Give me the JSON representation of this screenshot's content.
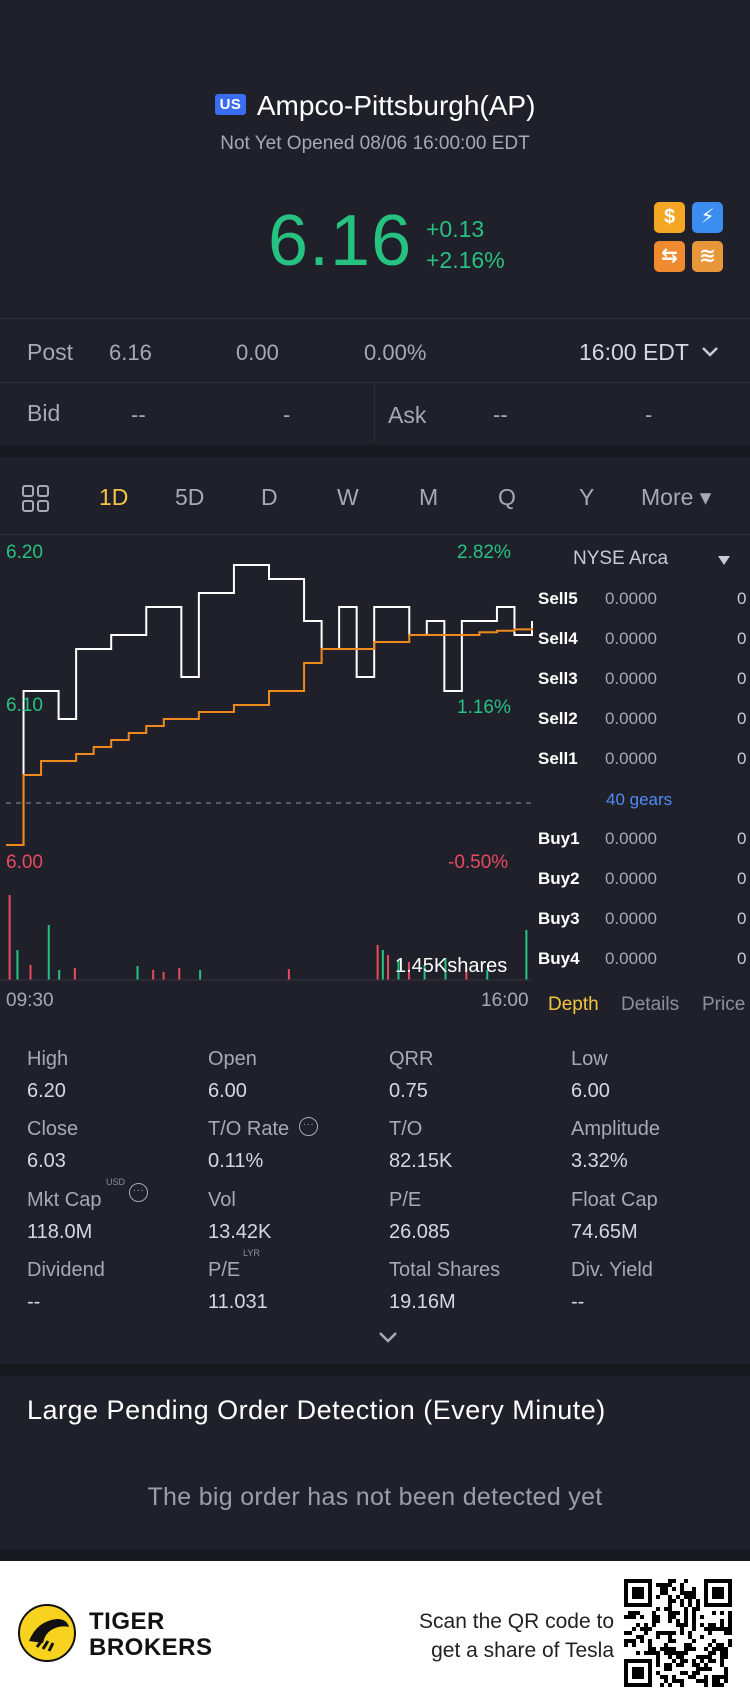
{
  "header": {
    "market": "US",
    "title": "Ampco-Pittsburgh(AP)",
    "status": "Not Yet Opened 08/06 16:00:00 EDT",
    "price": "6.16",
    "change": "+0.13",
    "change_pct": "+2.16%",
    "badges": [
      {
        "name": "dollar-icon",
        "glyph": "$",
        "color": "#f5a623"
      },
      {
        "name": "flash-icon",
        "glyph": "⚡",
        "color": "#3b8ef0"
      },
      {
        "name": "swap-icon",
        "glyph": "⇆",
        "color": "#f08a2e"
      },
      {
        "name": "stack-icon",
        "glyph": "≋",
        "color": "#e8963a"
      }
    ]
  },
  "post": {
    "label": "Post",
    "price": "6.16",
    "change": "0.00",
    "pct": "0.00%",
    "time": "16:00 EDT"
  },
  "quote": {
    "bid_label": "Bid",
    "bid_price": "--",
    "bid_size": "-",
    "ask_label": "Ask",
    "ask_price": "--",
    "ask_size": "-"
  },
  "tabs": [
    "1D",
    "5D",
    "D",
    "W",
    "M",
    "Q",
    "Y",
    "More ▾"
  ],
  "active_tab": "1D",
  "chart_labels": {
    "high": "6.20",
    "high_pct": "2.82%",
    "mid": "6.10",
    "mid_pct": "1.16%",
    "low": "6.00",
    "low_pct": "-0.50%",
    "volume": "1.45Kshares",
    "start_time": "09:30",
    "end_time": "16:00"
  },
  "chart_data": {
    "type": "line",
    "x_range": [
      "09:30",
      "16:00"
    ],
    "ylim": [
      6.0,
      6.2
    ],
    "series": [
      {
        "values": [
          6.0,
          6.11,
          6.11,
          6.09,
          6.14,
          6.14,
          6.15,
          6.15,
          6.17,
          6.17,
          6.12,
          6.18,
          6.18,
          6.2,
          6.2,
          6.19,
          6.19,
          6.16,
          6.14,
          6.17,
          6.12,
          6.17,
          6.17,
          6.15,
          6.16,
          6.11,
          6.16,
          6.16,
          6.17,
          6.15,
          6.16
        ]
      },
      {
        "values": [
          6.0,
          6.05,
          6.06,
          6.06,
          6.065,
          6.07,
          6.075,
          6.08,
          6.085,
          6.09,
          6.09,
          6.095,
          6.095,
          6.1,
          6.1,
          6.11,
          6.11,
          6.13,
          6.14,
          6.14,
          6.14,
          6.145,
          6.145,
          6.15,
          6.15,
          6.15,
          6.15,
          6.152,
          6.153,
          6.154,
          6.155
        ]
      }
    ],
    "prev_close": 6.03
  },
  "volume_bars": [
    {
      "t": 0.005,
      "v": 0.85,
      "c": "#e84a5f"
    },
    {
      "t": 0.02,
      "v": 0.3,
      "c": "#26c281"
    },
    {
      "t": 0.045,
      "v": 0.15,
      "c": "#e84a5f"
    },
    {
      "t": 0.08,
      "v": 0.55,
      "c": "#26c281"
    },
    {
      "t": 0.1,
      "v": 0.1,
      "c": "#26c281"
    },
    {
      "t": 0.13,
      "v": 0.12,
      "c": "#e84a5f"
    },
    {
      "t": 0.25,
      "v": 0.14,
      "c": "#26c281"
    },
    {
      "t": 0.28,
      "v": 0.1,
      "c": "#e84a5f"
    },
    {
      "t": 0.3,
      "v": 0.08,
      "c": "#e84a5f"
    },
    {
      "t": 0.33,
      "v": 0.12,
      "c": "#e84a5f"
    },
    {
      "t": 0.37,
      "v": 0.1,
      "c": "#26c281"
    },
    {
      "t": 0.54,
      "v": 0.11,
      "c": "#e84a5f"
    },
    {
      "t": 0.71,
      "v": 0.35,
      "c": "#e84a5f"
    },
    {
      "t": 0.72,
      "v": 0.3,
      "c": "#26c281"
    },
    {
      "t": 0.73,
      "v": 0.25,
      "c": "#e84a5f"
    },
    {
      "t": 0.75,
      "v": 0.2,
      "c": "#26c281"
    },
    {
      "t": 0.77,
      "v": 0.18,
      "c": "#e84a5f"
    },
    {
      "t": 0.8,
      "v": 0.15,
      "c": "#26c281"
    },
    {
      "t": 0.84,
      "v": 0.22,
      "c": "#26c281"
    },
    {
      "t": 0.88,
      "v": 0.12,
      "c": "#e84a5f"
    },
    {
      "t": 0.92,
      "v": 0.1,
      "c": "#26c281"
    },
    {
      "t": 0.995,
      "v": 0.5,
      "c": "#26c281"
    }
  ],
  "depth": {
    "exchange": "NYSE Arca",
    "sells": [
      {
        "label": "Sell5",
        "price": "0.0000",
        "qty": "0"
      },
      {
        "label": "Sell4",
        "price": "0.0000",
        "qty": "0"
      },
      {
        "label": "Sell3",
        "price": "0.0000",
        "qty": "0"
      },
      {
        "label": "Sell2",
        "price": "0.0000",
        "qty": "0"
      },
      {
        "label": "Sell1",
        "price": "0.0000",
        "qty": "0"
      }
    ],
    "gears": "40 gears",
    "buys": [
      {
        "label": "Buy1",
        "price": "0.0000",
        "qty": "0"
      },
      {
        "label": "Buy2",
        "price": "0.0000",
        "qty": "0"
      },
      {
        "label": "Buy3",
        "price": "0.0000",
        "qty": "0"
      },
      {
        "label": "Buy4",
        "price": "0.0000",
        "qty": "0"
      }
    ],
    "tabs": [
      "Depth",
      "Details",
      "Price"
    ]
  },
  "stats": [
    [
      {
        "k": "High",
        "v": "6.20"
      },
      {
        "k": "Open",
        "v": "6.00"
      },
      {
        "k": "QRR",
        "v": "0.75"
      },
      {
        "k": "Low",
        "v": "6.00"
      }
    ],
    [
      {
        "k": "Close",
        "v": "6.03"
      },
      {
        "k": "T/O Rate",
        "v": "0.11%"
      },
      {
        "k": "T/O",
        "v": "82.15K"
      },
      {
        "k": "Amplitude",
        "v": "3.32%"
      }
    ],
    [
      {
        "k": "Mkt Cap",
        "v": "118.0M"
      },
      {
        "k": "Vol",
        "v": "13.42K"
      },
      {
        "k": "P/E",
        "v": "26.085"
      },
      {
        "k": "Float Cap",
        "v": "74.65M"
      }
    ],
    [
      {
        "k": "Dividend",
        "v": "--"
      },
      {
        "k": "P/E",
        "v": "11.031"
      },
      {
        "k": "Total Shares",
        "v": "19.16M"
      },
      {
        "k": "Div. Yield",
        "v": "--"
      }
    ]
  ],
  "stat_marks": {
    "usd": "USD",
    "lyr": "LYR",
    "more": "···"
  },
  "large_orders": {
    "title": "Large Pending Order Detection (Every Minute)",
    "empty": "The big order has not been detected yet"
  },
  "footer": {
    "brand_line1": "TIGER",
    "brand_line2": "BROKERS",
    "qr_line1": "Scan the QR code to",
    "qr_line2": "get a share of Tesla"
  }
}
